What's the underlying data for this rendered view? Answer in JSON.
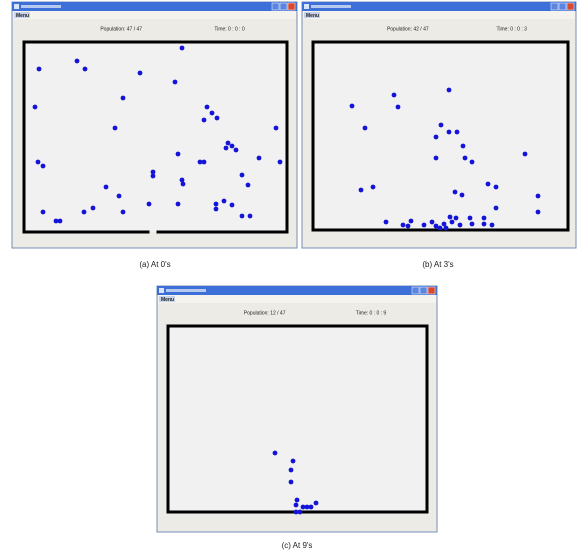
{
  "panels": [
    {
      "menu": "Menu",
      "population": "Population: 47 / 47",
      "time": "Time:  0 : 0 : 0",
      "caption": "(a) At 0's"
    },
    {
      "menu": "Menu",
      "population": "Population: 42 / 47",
      "time": "Time:  0 : 0 : 3",
      "caption": "(b) At 3's"
    },
    {
      "menu": "Menu",
      "population": "Population: 12 / 47",
      "time": "Time:  0 : 0 : 9",
      "caption": "(c) At 9's"
    }
  ]
}
